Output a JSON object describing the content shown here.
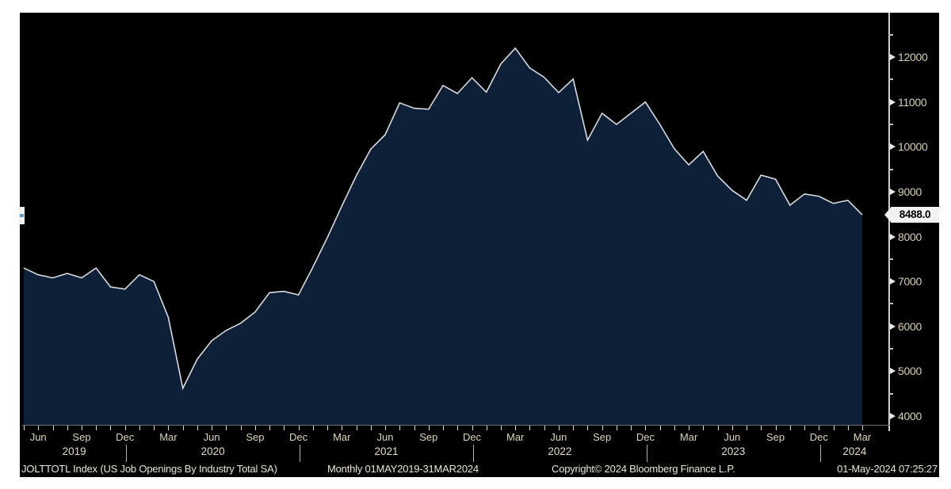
{
  "chart_data": {
    "type": "area",
    "title": "JOLTTOTL Index (US Job Openings By Industry Total SA)",
    "frequency": "Monthly",
    "period": "01MAY2019-31MAR2024",
    "x_start_month": "May 2019",
    "x_end_month": "Mar 2024",
    "values": [
      7300,
      7150,
      7080,
      7180,
      7080,
      7300,
      6880,
      6830,
      7150,
      7000,
      6200,
      4620,
      5270,
      5680,
      5910,
      6070,
      6320,
      6750,
      6780,
      6700,
      7320,
      7980,
      8680,
      9360,
      9950,
      10270,
      10980,
      10860,
      10840,
      11370,
      11190,
      11540,
      11220,
      11850,
      12200,
      11760,
      11550,
      11210,
      11510,
      10150,
      10750,
      10500,
      10750,
      11000,
      10500,
      9960,
      9600,
      9900,
      9350,
      9030,
      8810,
      9370,
      9280,
      8700,
      8950,
      8900,
      8740,
      8810,
      8488
    ],
    "last_price": "8488.0",
    "last_price_value": 8488,
    "ylim": [
      3900,
      12500
    ],
    "y_ticks": [
      4000,
      5000,
      6000,
      7000,
      8000,
      9000,
      10000,
      11000,
      12000
    ],
    "y_minor_ticks": [
      4500,
      5500,
      6500,
      7500,
      8500,
      9500,
      10500,
      11500,
      12500
    ],
    "x_tick_labels": [
      "Jun",
      "Sep",
      "Dec",
      "Mar",
      "Jun",
      "Sep",
      "Dec",
      "Mar",
      "Jun",
      "Sep",
      "Dec",
      "Mar",
      "Jun",
      "Sep",
      "Dec",
      "Mar",
      "Jun",
      "Sep",
      "Dec",
      "Mar"
    ],
    "year_labels": [
      "2019",
      "2020",
      "2021",
      "2022",
      "2023",
      "2024"
    ],
    "grid": "off",
    "legend": "none",
    "colors": {
      "panel_bg": "#000000",
      "page_bg": "#ffffff",
      "area_fill": "#0e2038",
      "line": "#d7dbdf",
      "axis": "#cfcfcf",
      "tick_label": "#d9d0b2"
    }
  },
  "footer": {
    "description": "JOLTTOTL Index (US Job Openings By Industry Total SA)",
    "period": "Monthly 01MAY2019-31MAR2024",
    "copyright": "Copyright© 2024 Bloomberg Finance L.P.",
    "timestamp": "01-May-2024 07:25:27"
  }
}
